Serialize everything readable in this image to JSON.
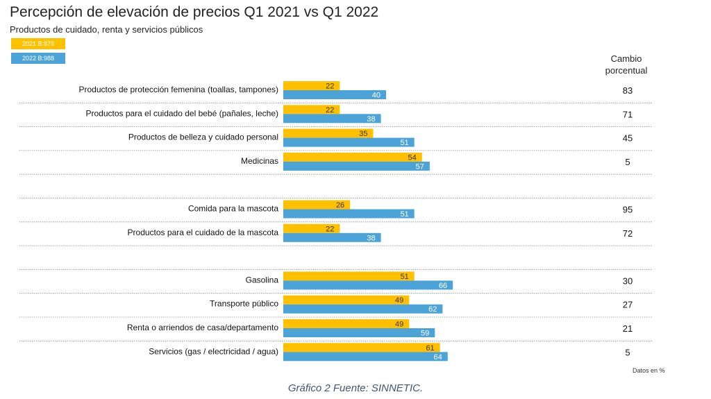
{
  "title": "Percepción de elevación de precios Q1 2021 vs Q1 2022",
  "subtitle": "Productos de cuidado, renta y servicios públicos",
  "legend": [
    {
      "label": "2021 B:879",
      "color": "#ffc000"
    },
    {
      "label": "2022 B:988",
      "color": "#4ba3d8"
    }
  ],
  "change_header": "Cambio porcentual",
  "datos_note": "Datos en %",
  "caption": "Gráfico 2 Fuente: SINNETIC.",
  "chart_data": {
    "type": "bar",
    "orientation": "horizontal",
    "categories": [
      "Productos de protección femenina (toallas, tampones)",
      "Productos para el cuidado del bebé (pañales, leche)",
      "Productos de belleza y cuidado personal",
      "Medicinas",
      "Comida para la mascota",
      "Productos para el cuidado de la mascota",
      "Gasolina",
      "Transporte público",
      "Renta o arriendos de casa/departamento",
      "Servicios (gas / electricidad / agua)"
    ],
    "groups": [
      [
        0,
        1,
        2,
        3
      ],
      [
        4,
        5
      ],
      [
        6,
        7,
        8,
        9
      ]
    ],
    "series": [
      {
        "name": "2021 B:879",
        "color": "#ffc000",
        "values": [
          22,
          22,
          35,
          54,
          26,
          22,
          51,
          49,
          49,
          61
        ]
      },
      {
        "name": "2022 B:988",
        "color": "#4ba3d8",
        "values": [
          40,
          38,
          51,
          57,
          51,
          38,
          66,
          62,
          59,
          64
        ]
      }
    ],
    "change": [
      83,
      71,
      45,
      5,
      95,
      72,
      30,
      27,
      21,
      5
    ],
    "xlim": [
      0,
      100
    ]
  }
}
